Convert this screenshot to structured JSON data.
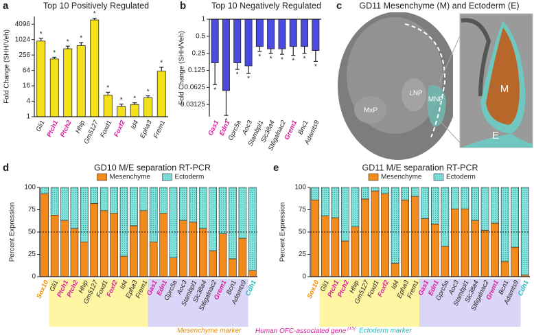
{
  "chart_data": [
    {
      "type": "bar",
      "panel": "a",
      "title": "Top 10 Positively Regulated",
      "y_label": "Fold Change (SHH/Veh)",
      "categories": [
        "Gli1",
        "Ptch1",
        "Ptch2",
        "Hhip",
        "Gm5127",
        "Foxd1",
        "Foxf2",
        "Id4",
        "Epha3",
        "Frem1"
      ],
      "label_colors": [
        "#222222",
        "#d81b9b",
        "#d81b9b",
        "#222222",
        "#222222",
        "#222222",
        "#d81b9b",
        "#222222",
        "#222222",
        "#222222"
      ],
      "values": [
        900,
        180,
        450,
        600,
        6000,
        7,
        2.5,
        3,
        5.5,
        60
      ],
      "errors": [
        250,
        30,
        120,
        180,
        1000,
        2,
        0.6,
        0.5,
        1,
        25
      ],
      "significance": [
        "*",
        "*",
        "*",
        "*",
        "*",
        "*",
        "*",
        "*",
        "*",
        "*"
      ],
      "color": "#f5e11a",
      "yscale": "log",
      "ylim": [
        1,
        8192
      ],
      "yticks": [
        1,
        4,
        16,
        64,
        256,
        1024,
        4096
      ]
    },
    {
      "type": "bar",
      "panel": "b",
      "title": "Top 10 Negatively Regulated",
      "y_label": "Fold Change (SHH/Veh)",
      "categories": [
        "Gas1",
        "Edn1",
        "Gprc5a",
        "Aoc3",
        "Stambpl1",
        "Slc38a4",
        "St6galnac2",
        "Grem1",
        "Bnc1",
        "Adamts9"
      ],
      "label_colors": [
        "#d81b9b",
        "#d81b9b",
        "#222222",
        "#222222",
        "#222222",
        "#222222",
        "#222222",
        "#d81b9b",
        "#222222",
        "#222222"
      ],
      "values": [
        0.17,
        0.055,
        0.17,
        0.15,
        0.33,
        0.3,
        0.3,
        0.33,
        0.33,
        0.28
      ],
      "errors": [
        0.1,
        0.035,
        0.04,
        0.04,
        0.06,
        0.05,
        0.06,
        0.1,
        0.08,
        0.1
      ],
      "significance": [
        "*",
        "*",
        "*",
        "*",
        "*",
        "*",
        "*",
        "*",
        "*",
        "*"
      ],
      "color": "#4b4be0",
      "yscale": "log",
      "ylim": [
        0.019,
        1
      ],
      "yticks": [
        0.03125,
        0.0625,
        0.125,
        0.25,
        0.5,
        1
      ]
    },
    {
      "type": "stacked_bar",
      "panel": "d",
      "title": "GD10 M/E separation RT-PCR",
      "y_label": "Percent Expression",
      "legend": "top",
      "categories": [
        "Sox10",
        "Gli1",
        "Ptch1",
        "Ptch2",
        "Hhip",
        "Gm5127",
        "Foxd1",
        "Foxf2",
        "Id4",
        "Epha3",
        "Frem1",
        "Gas1",
        "Edn1",
        "Gprc5a",
        "Aoc3",
        "Stambpl1",
        "Slc38a4",
        "St6galnac2",
        "Grem1",
        "Bcn1",
        "Adamts9",
        "Cdh1"
      ],
      "label_colors": [
        "#f08c00",
        "#222222",
        "#d81b9b",
        "#d81b9b",
        "#222222",
        "#222222",
        "#222222",
        "#d81b9b",
        "#222222",
        "#222222",
        "#222222",
        "#d81b9b",
        "#d81b9b",
        "#222222",
        "#222222",
        "#222222",
        "#222222",
        "#222222",
        "#d81b9b",
        "#222222",
        "#222222",
        "#21b8c0"
      ],
      "series": [
        {
          "name": "Mesenchyme",
          "color": "#f28a1c",
          "values": [
            93,
            69,
            63,
            54,
            39,
            82,
            74,
            71,
            23,
            57,
            74,
            39,
            71,
            21,
            63,
            61,
            54,
            29,
            48,
            20,
            43,
            7
          ]
        },
        {
          "name": "Ectoderm",
          "color": "#7fe3dc",
          "values": [
            7,
            31,
            37,
            46,
            61,
            18,
            26,
            29,
            77,
            43,
            26,
            61,
            29,
            79,
            37,
            39,
            46,
            71,
            52,
            80,
            57,
            93
          ]
        }
      ],
      "ylim": [
        0,
        100
      ],
      "yticks": [
        0,
        25,
        50,
        75,
        100
      ],
      "reference_line": 50
    },
    {
      "type": "stacked_bar",
      "panel": "e",
      "title": "GD11 M/E separation RT-PCR",
      "y_label": "Percent Expression",
      "legend": "top",
      "categories": [
        "Sox10",
        "Gli1",
        "Ptch1",
        "Ptch2",
        "Hhip",
        "Gm5127",
        "Foxd1",
        "Foxf2",
        "Id4",
        "Epha3",
        "Frem1",
        "Gas1",
        "Edn1",
        "Gprc5a",
        "Aoc3",
        "Stambpl1",
        "Slc38a4",
        "St6galnac2",
        "Grem1",
        "Bcn1",
        "Adamts9",
        "Cdh1"
      ],
      "label_colors": [
        "#f08c00",
        "#222222",
        "#d81b9b",
        "#d81b9b",
        "#222222",
        "#222222",
        "#222222",
        "#d81b9b",
        "#222222",
        "#222222",
        "#222222",
        "#d81b9b",
        "#d81b9b",
        "#222222",
        "#222222",
        "#222222",
        "#222222",
        "#222222",
        "#d81b9b",
        "#222222",
        "#222222",
        "#21b8c0"
      ],
      "series": [
        {
          "name": "Mesenchyme",
          "color": "#f28a1c",
          "values": [
            86,
            68,
            66,
            40,
            56,
            87,
            96,
            93,
            15,
            86,
            90,
            65,
            59,
            34,
            76,
            76,
            63,
            52,
            60,
            17,
            33,
            2
          ]
        },
        {
          "name": "Ectoderm",
          "color": "#7fe3dc",
          "values": [
            14,
            32,
            34,
            60,
            44,
            13,
            4,
            7,
            85,
            14,
            10,
            35,
            41,
            66,
            24,
            24,
            37,
            48,
            40,
            83,
            67,
            98
          ]
        }
      ],
      "ylim": [
        0,
        100
      ],
      "yticks": [
        0,
        25,
        50,
        75,
        100
      ],
      "reference_line": 50
    }
  ],
  "image_panel": {
    "panel": "c",
    "title": "GD11 Mesenchyme (M) and Ectoderm (E)",
    "labels": [
      "LNP",
      "MNP",
      "MxP",
      "M",
      "E"
    ]
  },
  "footnotes": {
    "mesenchyme": "Mesenchyme marker",
    "human": "Human OFC-associated gene",
    "reference": "[15]",
    "ectoderm": "Ectoderm marker"
  }
}
